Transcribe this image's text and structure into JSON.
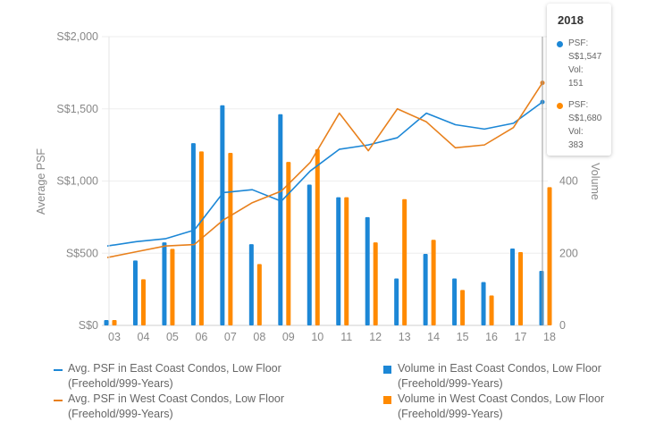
{
  "chart_data": {
    "type": "bar+line",
    "categories": [
      "03",
      "04",
      "05",
      "06",
      "07",
      "08",
      "09",
      "10",
      "11",
      "12",
      "13",
      "14",
      "15",
      "16",
      "17",
      "18"
    ],
    "y_left": {
      "label": "Average PSF",
      "ticks": [
        "S$0",
        "S$500",
        "S$1,000",
        "S$1,500",
        "S$2,000"
      ],
      "range": [
        0,
        2000
      ]
    },
    "y_right": {
      "label": "Volume",
      "ticks": [
        "0",
        "200",
        "400"
      ],
      "range": [
        0,
        800
      ]
    },
    "series": [
      {
        "name": "Avg. PSF in East Coast Condos, Low Floor (Freehold/999-Years)",
        "kind": "line",
        "axis": "left",
        "color": "#1c87d6",
        "values": [
          550,
          580,
          600,
          660,
          920,
          940,
          860,
          1070,
          1220,
          1250,
          1300,
          1470,
          1390,
          1360,
          1400,
          1547
        ]
      },
      {
        "name": "Avg. PSF in West Coast Condos, Low Floor (Freehold/999-Years)",
        "kind": "line",
        "axis": "left",
        "color": "#e8801c",
        "values": [
          470,
          510,
          550,
          560,
          730,
          850,
          930,
          1130,
          1470,
          1210,
          1500,
          1410,
          1230,
          1250,
          1370,
          1680
        ]
      },
      {
        "name": "Volume in East Coast Condos, Low Floor (Freehold/999-Years)",
        "kind": "bar",
        "axis": "right",
        "color": "#1c87d6",
        "values": [
          15,
          180,
          230,
          505,
          610,
          225,
          585,
          390,
          355,
          300,
          130,
          198,
          130,
          120,
          213,
          151
        ]
      },
      {
        "name": "Volume in West Coast Condos, Low Floor (Freehold/999-Years)",
        "kind": "bar",
        "axis": "right",
        "color": "#ff8a00",
        "values": [
          15,
          128,
          212,
          482,
          478,
          170,
          453,
          488,
          355,
          230,
          350,
          237,
          98,
          83,
          203,
          383
        ]
      }
    ],
    "grid": "horizontal"
  },
  "tooltip": {
    "year": "2018",
    "entries": [
      {
        "color": "#1c87d6",
        "lines": [
          "PSF:",
          "S$1,547",
          "Vol:",
          "151"
        ]
      },
      {
        "color": "#ff8a00",
        "lines": [
          "PSF:",
          "S$1,680",
          "Vol:",
          "383"
        ]
      }
    ]
  },
  "legend": [
    {
      "label": "Avg. PSF in East Coast Condos, Low Floor (Freehold/999-Years)",
      "marker": "line",
      "color": "#1c87d6"
    },
    {
      "label": "Avg. PSF in West Coast Condos, Low Floor (Freehold/999-Years)",
      "marker": "line",
      "color": "#e8801c"
    },
    {
      "label": "Volume in East Coast Condos, Low Floor (Freehold/999-Years)",
      "marker": "square",
      "color": "#1c87d6"
    },
    {
      "label": "Volume in West Coast Condos, Low Floor (Freehold/999-Years)",
      "marker": "square",
      "color": "#ff8a00"
    }
  ]
}
